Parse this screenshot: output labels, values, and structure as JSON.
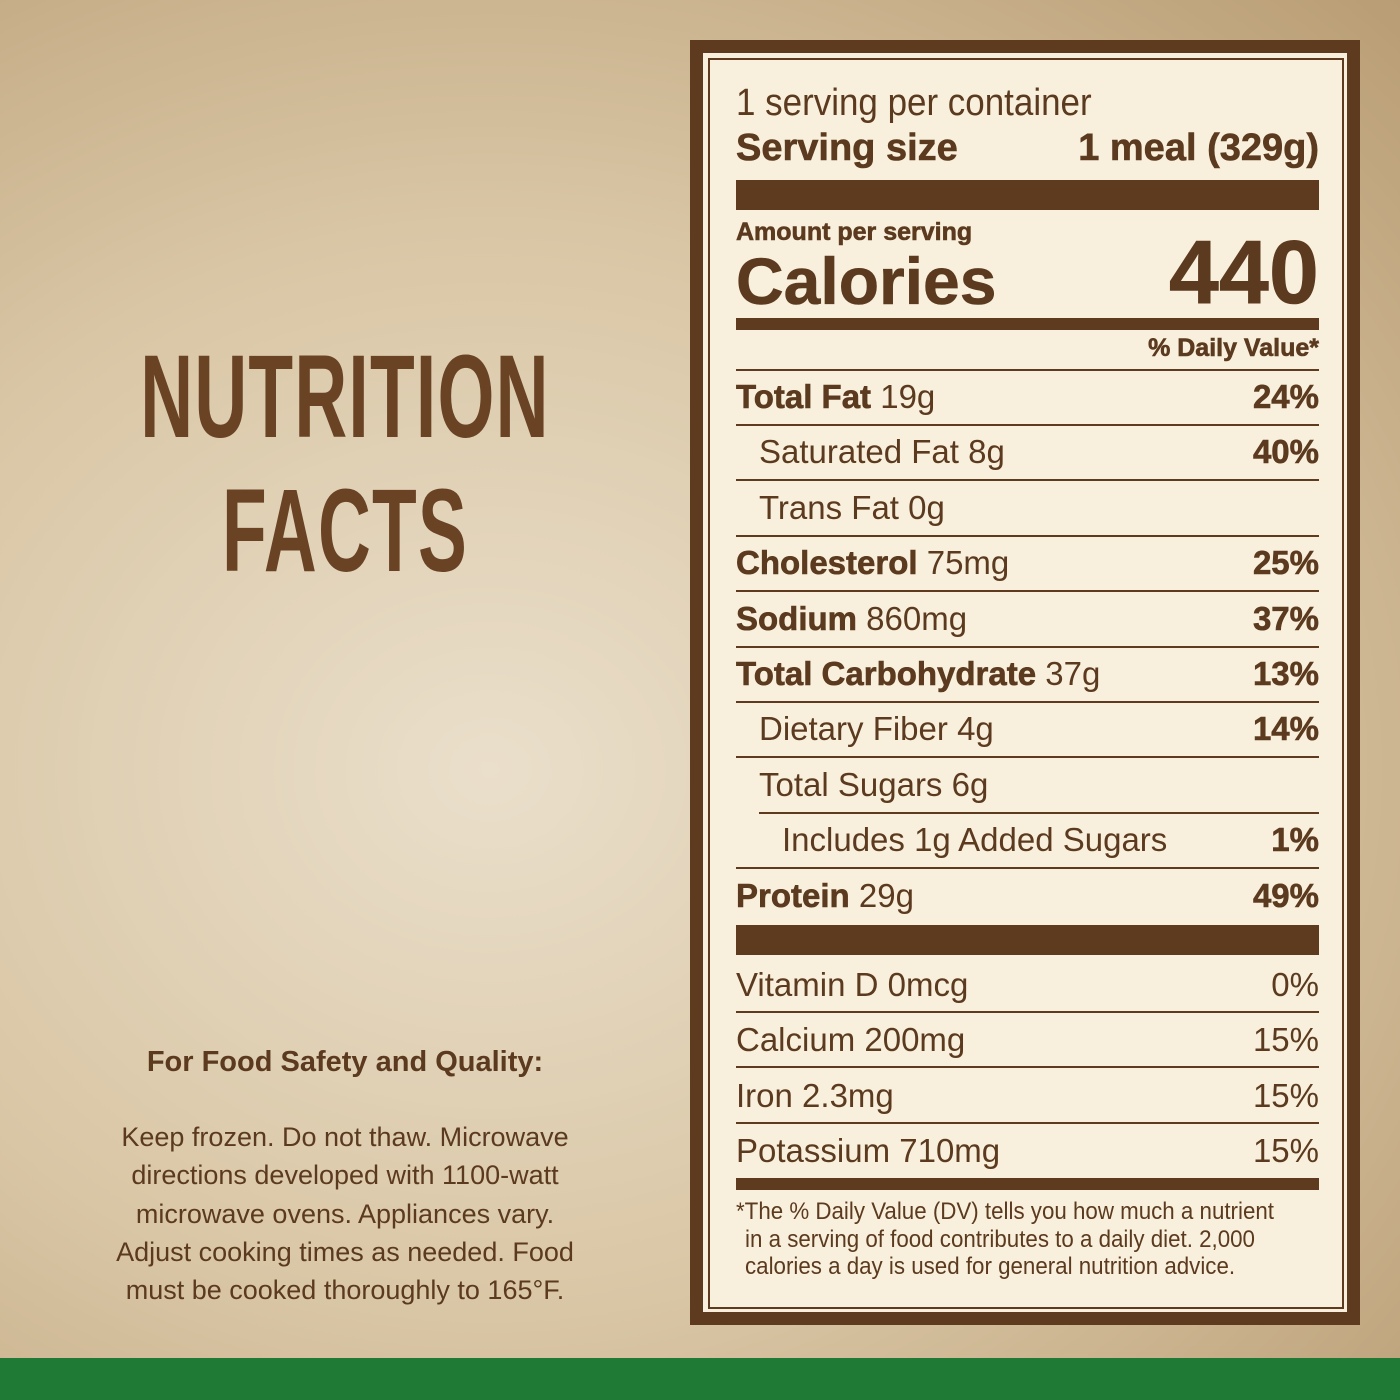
{
  "heading": {
    "lines": [
      "NUTRITION",
      "FACTS"
    ]
  },
  "safety": {
    "title": "For Food Safety and Quality:",
    "lines": [
      "Keep frozen. Do not thaw. Microwave",
      "directions developed with 1100-watt",
      "microwave ovens. Appliances vary.",
      "Adjust cooking times as needed. Food",
      "must be cooked thoroughly to 165°F."
    ]
  },
  "label": {
    "servings": "1 serving per container",
    "serving_size_label": "Serving size",
    "serving_size": "1 meal (329g)",
    "amount_per_serving": "Amount per serving",
    "calories_label": "Calories",
    "calories": 440,
    "dv_header": "% Daily Value*",
    "nutrients": [
      {
        "name": "Total Fat",
        "amount": "19g",
        "dv": "24%"
      },
      {
        "name": "Saturated Fat",
        "amount": "8g",
        "dv": "40%"
      },
      {
        "name": "Trans Fat",
        "amount": "0g"
      },
      {
        "name": "Cholesterol",
        "amount": "75mg",
        "dv": "25%"
      },
      {
        "name": "Sodium",
        "amount": "860mg",
        "dv": "37%"
      },
      {
        "name": "Total Carbohydrate",
        "amount": "37g",
        "dv": "13%"
      },
      {
        "name": "Dietary Fiber",
        "amount": "4g",
        "dv": "14%"
      },
      {
        "name": "Total Sugars",
        "amount": "6g"
      },
      {
        "name": "Includes 1g Added Sugars",
        "dv": "1%"
      },
      {
        "name": "Protein",
        "amount": "29g",
        "dv": "49%"
      }
    ],
    "vitamins": [
      {
        "name": "Vitamin D",
        "amount": "0mcg",
        "dv": "0%"
      },
      {
        "name": "Calcium",
        "amount": "200mg",
        "dv": "15%"
      },
      {
        "name": "Iron",
        "amount": "2.3mg",
        "dv": "15%"
      },
      {
        "name": "Potassium",
        "amount": "710mg",
        "dv": "15%"
      }
    ],
    "footnote": [
      "*The % Daily Value (DV) tells you how much a nutrient",
      "in a serving of food contributes to a daily diet. 2,000",
      "calories a day is used for general nutrition advice."
    ]
  }
}
